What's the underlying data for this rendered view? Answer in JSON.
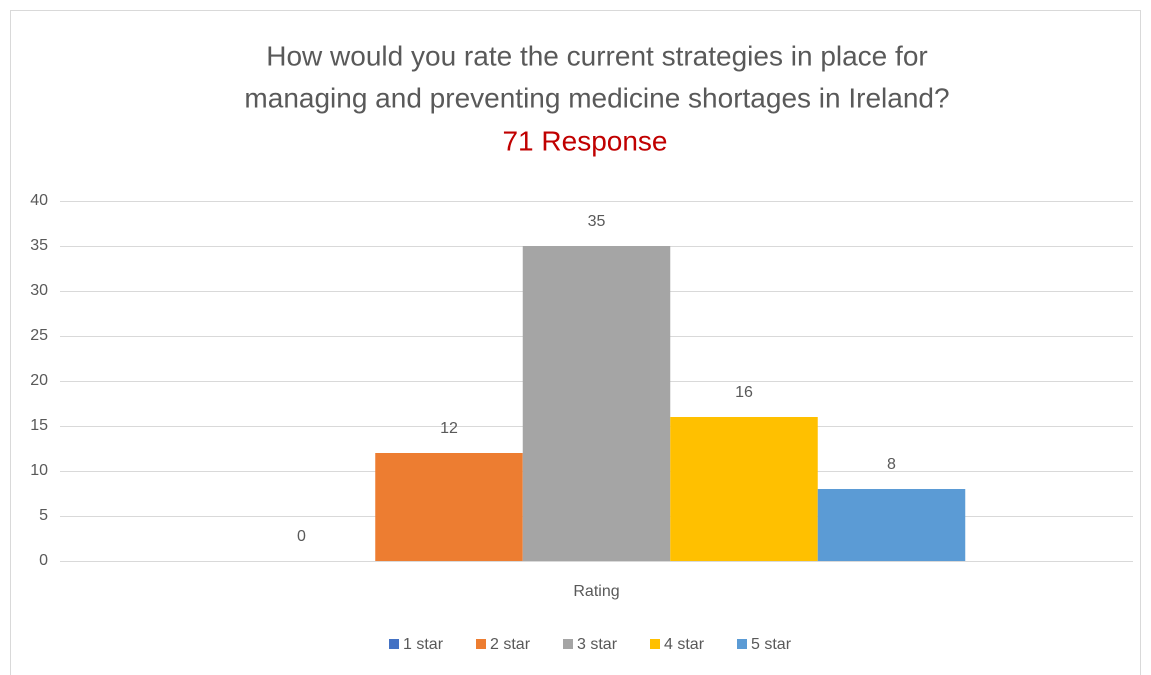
{
  "chart_data": {
    "type": "bar",
    "title": [
      "How would you rate the current strategies in place for",
      "managing and preventing medicine shortages in Ireland?"
    ],
    "subtitle": "71 Response",
    "categories": [
      "Rating"
    ],
    "series": [
      {
        "name": "1 star",
        "color": "#4472c4",
        "values": [
          0
        ]
      },
      {
        "name": "2 star",
        "color": "#ed7d31",
        "values": [
          12
        ]
      },
      {
        "name": "3 star",
        "color": "#a5a5a5",
        "values": [
          35
        ]
      },
      {
        "name": "4 star",
        "color": "#ffc000",
        "values": [
          16
        ]
      },
      {
        "name": "5 star",
        "color": "#5b9bd5",
        "values": [
          8
        ]
      }
    ],
    "ylim": [
      0,
      40
    ],
    "yticks": [
      0,
      5,
      10,
      15,
      20,
      25,
      30,
      35,
      40
    ],
    "grid": true,
    "legend": "bottom"
  }
}
